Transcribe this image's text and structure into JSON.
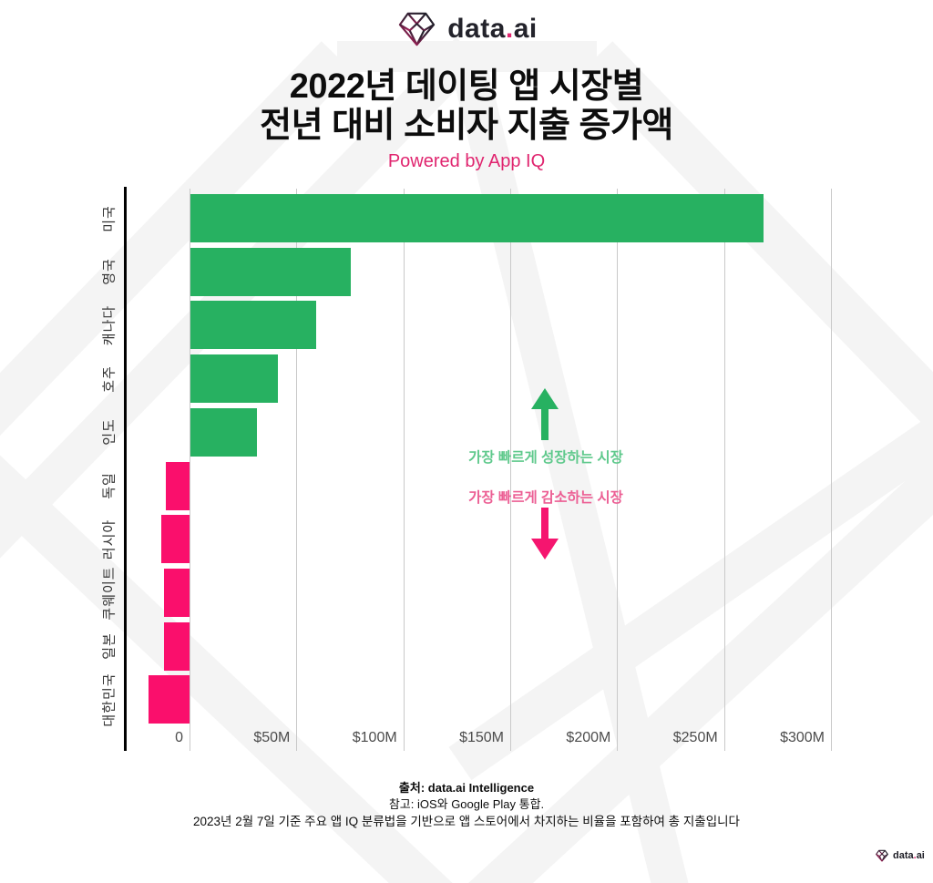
{
  "logo": {
    "word_pre": "data",
    "dot": ".",
    "word_post": "ai"
  },
  "header": {
    "title_line1": "2022년 데이팅 앱 시장별",
    "title_line2": "전년 대비 소비자 지출 증가액",
    "subtitle": "Powered by App IQ"
  },
  "colors": {
    "bar_positive": "#27b161",
    "bar_negative": "#fa0f6c",
    "accent_pink": "#e0256f",
    "annotation_green_text": "#5fc98c",
    "annotation_pink_text": "#ec5f94",
    "arrow_green": "#27b161",
    "arrow_pink": "#f5156f",
    "gridline": "#c9c9c9",
    "axis_spine": "#000000",
    "tick_label": "#4c4c4c"
  },
  "chart_data": {
    "type": "bar",
    "orientation": "horizontal",
    "title": "2022년 데이팅 앱 시장별 전년 대비 소비자 지출 증가액",
    "subtitle": "Powered by App IQ",
    "unit": "USD millions (year-over-year consumer spend growth)",
    "categories": [
      "미국",
      "영국",
      "캐나다",
      "호주",
      "인도",
      "독일",
      "러시아",
      "쿠웨이트",
      "일본",
      "대한민국"
    ],
    "values": [
      268,
      75,
      59,
      41,
      31,
      -11,
      -13,
      -12,
      -12,
      -19
    ],
    "xlim": [
      -30,
      300
    ],
    "grid": "vertical",
    "x_ticks": [
      {
        "label": "0",
        "value": 0
      },
      {
        "label": "$50M",
        "value": 50
      },
      {
        "label": "$100M",
        "value": 100
      },
      {
        "label": "$150M",
        "value": 150
      },
      {
        "label": "$200M",
        "value": 200
      },
      {
        "label": "$250M",
        "value": 250
      },
      {
        "label": "$300M",
        "value": 300
      }
    ]
  },
  "annotations": {
    "growing": {
      "text": "가장 빠르게 성장하는 시장"
    },
    "declining": {
      "text": "가장 빠르게 감소하는 시장"
    }
  },
  "footer": {
    "source_line": "출처: data.ai Intelligence",
    "note_line1": "참고: iOS와 Google Play 통합.",
    "note_line2": "2023년 2월 7일 기준 주요 앱 IQ 분류법을 기반으로 앱 스토어에서 차지하는 비율을 포함하여 총 지출입니다"
  }
}
